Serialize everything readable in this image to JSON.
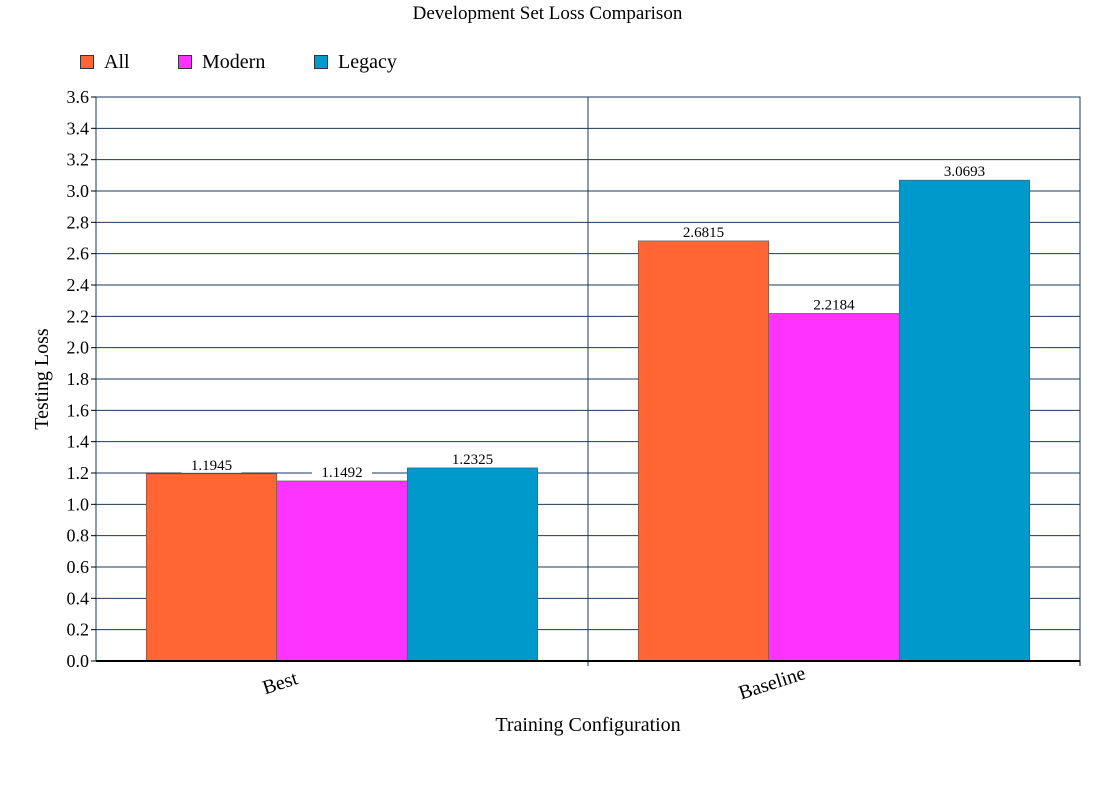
{
  "chart_data": {
    "type": "bar",
    "title": "Development Set Loss Comparison",
    "xlabel": "Training Configuration",
    "ylabel": "Testing Loss",
    "categories": [
      "Best",
      "Baseline"
    ],
    "series": [
      {
        "name": "All",
        "color": "#ff6633",
        "values": [
          1.1945,
          2.6815
        ],
        "labels": [
          "1.1945",
          "2.6815"
        ]
      },
      {
        "name": "Modern",
        "color": "#ff33ff",
        "values": [
          1.1492,
          2.2184
        ],
        "labels": [
          "1.1492",
          "2.2184"
        ]
      },
      {
        "name": "Legacy",
        "color": "#0099cc",
        "values": [
          1.2325,
          3.0693
        ],
        "labels": [
          "1.2325",
          "3.0693"
        ]
      }
    ],
    "ylim": [
      0,
      3.6
    ],
    "yticks": [
      "0.0",
      "0.2",
      "0.4",
      "0.6",
      "0.8",
      "1.0",
      "1.2",
      "1.4",
      "1.6",
      "1.8",
      "2.0",
      "2.2",
      "2.4",
      "2.6",
      "2.8",
      "3.0",
      "3.2",
      "3.4",
      "3.6"
    ],
    "grid": true,
    "legend_position": "top-left"
  }
}
